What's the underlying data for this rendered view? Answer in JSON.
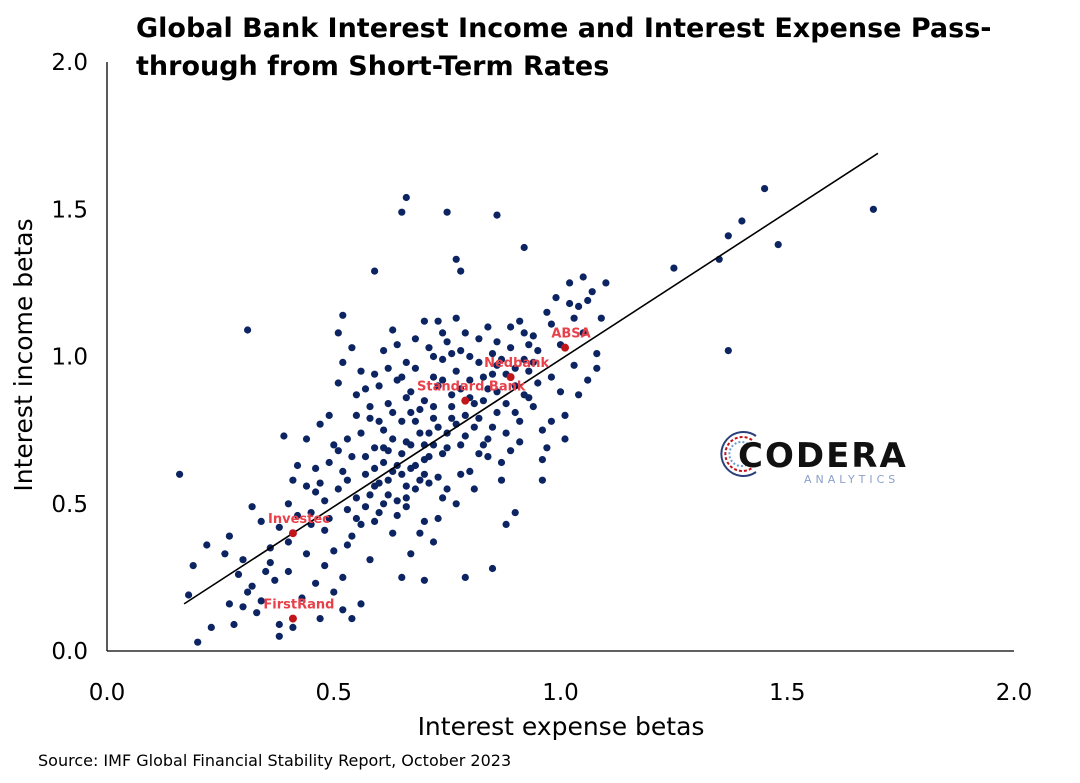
{
  "chart_data": {
    "type": "scatter",
    "title": "Global Bank Interest Income and Interest Expense Pass-through from Short-Term Rates",
    "xlabel": "Interest expense betas",
    "ylabel": "Interest income betas",
    "xlim": [
      0,
      2
    ],
    "ylim": [
      0,
      2
    ],
    "x_ticks": [
      "0.0",
      "0.5",
      "1.0",
      "1.5",
      "2.0"
    ],
    "y_ticks": [
      "0.0",
      "0.5",
      "1.0",
      "1.5",
      "2.0"
    ],
    "grid": false,
    "colors": {
      "points": "#0c2461",
      "highlight": "#c0151b",
      "highlight_label": "#e8414a",
      "trend": "#000000"
    },
    "trend_line": {
      "x": [
        0.17,
        1.7
      ],
      "y": [
        0.16,
        1.69
      ]
    },
    "highlighted": [
      {
        "name": "ABSA",
        "x": 1.01,
        "y": 1.03
      },
      {
        "name": "Nedbank",
        "x": 0.89,
        "y": 0.93
      },
      {
        "name": "Standard Bank",
        "x": 0.79,
        "y": 0.85
      },
      {
        "name": "Investec",
        "x": 0.41,
        "y": 0.4
      },
      {
        "name": "FirstRand",
        "x": 0.41,
        "y": 0.11
      }
    ],
    "series": [
      {
        "values": [
          [
            0.66,
            1.54
          ],
          [
            0.65,
            1.49
          ],
          [
            0.75,
            1.49
          ],
          [
            0.86,
            1.48
          ],
          [
            0.92,
            1.37
          ],
          [
            0.77,
            1.33
          ],
          [
            0.78,
            1.29
          ],
          [
            0.59,
            1.29
          ],
          [
            1.25,
            1.3
          ],
          [
            1.35,
            1.33
          ],
          [
            1.37,
            1.41
          ],
          [
            1.4,
            1.46
          ],
          [
            1.45,
            1.57
          ],
          [
            1.48,
            1.38
          ],
          [
            1.69,
            1.5
          ],
          [
            1.37,
            1.02
          ],
          [
            0.31,
            1.09
          ],
          [
            0.16,
            0.6
          ],
          [
            0.18,
            0.19
          ],
          [
            0.19,
            0.29
          ],
          [
            0.2,
            0.03
          ],
          [
            0.23,
            0.08
          ],
          [
            0.22,
            0.36
          ],
          [
            0.26,
            0.33
          ],
          [
            0.27,
            0.39
          ],
          [
            0.27,
            0.16
          ],
          [
            0.29,
            0.26
          ],
          [
            0.3,
            0.31
          ],
          [
            0.31,
            0.2
          ],
          [
            0.32,
            0.49
          ],
          [
            0.33,
            0.13
          ],
          [
            0.34,
            0.17
          ],
          [
            0.36,
            0.35
          ],
          [
            0.37,
            0.24
          ],
          [
            0.38,
            0.05
          ],
          [
            0.38,
            0.09
          ],
          [
            0.4,
            0.27
          ],
          [
            0.4,
            0.5
          ],
          [
            0.41,
            0.58
          ],
          [
            0.42,
            0.63
          ],
          [
            0.44,
            0.33
          ],
          [
            0.45,
            0.47
          ],
          [
            0.46,
            0.54
          ],
          [
            0.47,
            0.57
          ],
          [
            0.48,
            0.41
          ],
          [
            0.48,
            0.29
          ],
          [
            0.49,
            0.64
          ],
          [
            0.5,
            0.7
          ],
          [
            0.51,
            0.55
          ],
          [
            0.52,
            0.61
          ],
          [
            0.53,
            0.48
          ],
          [
            0.53,
            0.36
          ],
          [
            0.54,
            0.11
          ],
          [
            0.52,
            0.14
          ],
          [
            0.5,
            0.2
          ],
          [
            0.44,
            0.72
          ],
          [
            0.39,
            0.73
          ],
          [
            0.41,
            0.08
          ],
          [
            0.46,
            0.23
          ],
          [
            0.45,
            0.43
          ],
          [
            0.47,
            0.77
          ],
          [
            0.49,
            0.8
          ],
          [
            0.51,
            0.91
          ],
          [
            0.52,
            0.98
          ],
          [
            0.51,
            1.08
          ],
          [
            0.52,
            1.14
          ],
          [
            0.54,
            1.03
          ],
          [
            0.55,
            0.87
          ],
          [
            0.56,
            0.74
          ],
          [
            0.57,
            0.66
          ],
          [
            0.58,
            0.79
          ],
          [
            0.59,
            0.62
          ],
          [
            0.6,
            0.57
          ],
          [
            0.61,
            0.69
          ],
          [
            0.62,
            0.53
          ],
          [
            0.63,
            0.81
          ],
          [
            0.64,
            0.46
          ],
          [
            0.65,
            0.6
          ],
          [
            0.66,
            0.71
          ],
          [
            0.67,
            0.88
          ],
          [
            0.68,
            0.96
          ],
          [
            0.69,
            0.58
          ],
          [
            0.7,
            0.65
          ],
          [
            0.71,
            0.74
          ],
          [
            0.72,
            0.83
          ],
          [
            0.73,
            0.9
          ],
          [
            0.74,
            0.67
          ],
          [
            0.75,
            0.55
          ],
          [
            0.76,
            0.79
          ],
          [
            0.77,
            0.95
          ],
          [
            0.78,
            1.02
          ],
          [
            0.79,
            0.73
          ],
          [
            0.8,
            0.61
          ],
          [
            0.81,
            0.84
          ],
          [
            0.82,
            0.98
          ],
          [
            0.83,
            0.7
          ],
          [
            0.84,
            0.89
          ],
          [
            0.85,
            0.76
          ],
          [
            0.86,
            1.05
          ],
          [
            0.87,
            0.64
          ],
          [
            0.88,
            0.94
          ],
          [
            0.89,
            1.1
          ],
          [
            0.9,
            0.81
          ],
          [
            0.91,
            0.71
          ],
          [
            0.92,
            0.99
          ],
          [
            0.93,
            0.86
          ],
          [
            0.94,
            1.07
          ],
          [
            0.95,
            0.91
          ],
          [
            0.96,
            0.65
          ],
          [
            0.97,
            1.15
          ],
          [
            0.98,
            0.78
          ],
          [
            0.99,
            1.2
          ],
          [
            1.0,
            0.88
          ],
          [
            1.01,
            0.72
          ],
          [
            1.02,
            1.25
          ],
          [
            1.03,
            0.97
          ],
          [
            1.04,
            1.17
          ],
          [
            1.05,
            1.08
          ],
          [
            1.06,
            0.92
          ],
          [
            1.07,
            1.22
          ],
          [
            1.08,
            1.01
          ],
          [
            1.09,
            1.13
          ],
          [
            1.1,
            1.25
          ],
          [
            1.05,
            1.27
          ],
          [
            1.02,
            1.18
          ],
          [
            0.98,
            1.11
          ],
          [
            0.96,
            0.58
          ],
          [
            0.9,
            0.47
          ],
          [
            0.88,
            0.43
          ],
          [
            0.85,
            0.28
          ],
          [
            0.79,
            0.25
          ],
          [
            0.72,
            0.37
          ],
          [
            0.7,
            0.24
          ],
          [
            0.67,
            0.33
          ],
          [
            0.65,
            0.25
          ],
          [
            0.63,
            0.4
          ],
          [
            0.6,
            0.47
          ],
          [
            0.58,
            0.31
          ],
          [
            0.56,
            0.43
          ],
          [
            0.55,
            0.52
          ],
          [
            0.57,
            0.6
          ],
          [
            0.59,
            0.69
          ],
          [
            0.61,
            0.75
          ],
          [
            0.62,
            0.84
          ],
          [
            0.64,
            0.92
          ],
          [
            0.66,
            0.98
          ],
          [
            0.68,
            1.06
          ],
          [
            0.7,
            1.12
          ],
          [
            0.72,
            1.0
          ],
          [
            0.74,
            1.08
          ],
          [
            0.76,
            1.01
          ],
          [
            0.74,
            0.92
          ],
          [
            0.72,
            0.79
          ],
          [
            0.7,
            0.7
          ],
          [
            0.68,
            0.63
          ],
          [
            0.66,
            0.56
          ],
          [
            0.64,
            0.51
          ],
          [
            0.62,
            0.68
          ],
          [
            0.6,
            0.78
          ],
          [
            0.58,
            0.83
          ],
          [
            0.56,
            0.95
          ],
          [
            0.54,
            0.66
          ],
          [
            0.53,
            0.72
          ],
          [
            0.55,
            0.8
          ],
          [
            0.57,
            0.89
          ],
          [
            0.59,
            0.94
          ],
          [
            0.61,
            1.02
          ],
          [
            0.63,
            1.09
          ],
          [
            0.65,
            0.93
          ],
          [
            0.67,
            0.81
          ],
          [
            0.69,
            0.74
          ],
          [
            0.71,
            0.66
          ],
          [
            0.73,
            0.59
          ],
          [
            0.75,
            0.69
          ],
          [
            0.77,
            0.77
          ],
          [
            0.79,
            0.8
          ],
          [
            0.81,
            0.76
          ],
          [
            0.83,
            0.85
          ],
          [
            0.85,
            0.94
          ],
          [
            0.87,
            0.99
          ],
          [
            0.89,
            1.03
          ],
          [
            0.91,
            1.12
          ],
          [
            0.93,
            1.04
          ],
          [
            0.86,
            0.81
          ],
          [
            0.82,
            0.67
          ],
          [
            0.78,
            0.6
          ],
          [
            0.74,
            0.52
          ],
          [
            0.7,
            0.44
          ],
          [
            0.66,
            0.49
          ],
          [
            0.62,
            0.58
          ],
          [
            0.58,
            0.53
          ],
          [
            0.54,
            0.39
          ],
          [
            0.5,
            0.34
          ],
          [
            0.48,
            0.51
          ],
          [
            0.46,
            0.62
          ],
          [
            0.44,
            0.56
          ],
          [
            0.42,
            0.46
          ],
          [
            0.4,
            0.37
          ],
          [
            0.38,
            0.42
          ],
          [
            0.36,
            0.3
          ],
          [
            0.34,
            0.44
          ],
          [
            0.32,
            0.22
          ],
          [
            0.3,
            0.15
          ],
          [
            0.28,
            0.09
          ],
          [
            0.35,
            0.27
          ],
          [
            0.43,
            0.18
          ],
          [
            0.47,
            0.11
          ],
          [
            0.52,
            0.25
          ],
          [
            0.56,
            0.16
          ],
          [
            0.6,
            0.9
          ],
          [
            0.62,
            0.96
          ],
          [
            0.64,
            1.04
          ],
          [
            0.66,
            0.86
          ],
          [
            0.68,
            0.78
          ],
          [
            0.7,
            0.85
          ],
          [
            0.72,
            0.93
          ],
          [
            0.74,
            0.99
          ],
          [
            0.76,
            0.87
          ],
          [
            0.78,
            0.7
          ],
          [
            0.8,
            0.92
          ],
          [
            0.82,
            1.06
          ],
          [
            0.84,
            1.1
          ],
          [
            0.86,
            0.97
          ],
          [
            0.88,
            0.74
          ],
          [
            0.9,
            0.9
          ],
          [
            0.92,
            1.08
          ],
          [
            0.94,
            0.83
          ],
          [
            0.96,
            0.75
          ],
          [
            0.98,
            0.93
          ],
          [
            1.0,
            1.04
          ],
          [
            1.03,
            1.13
          ],
          [
            1.06,
            1.19
          ],
          [
            1.08,
            0.96
          ],
          [
            1.04,
            0.87
          ],
          [
            1.01,
            0.8
          ],
          [
            0.97,
            0.69
          ],
          [
            0.95,
            1.02
          ],
          [
            0.93,
            0.95
          ],
          [
            0.91,
            0.78
          ],
          [
            0.89,
            0.68
          ],
          [
            0.87,
            0.58
          ],
          [
            0.84,
            0.66
          ],
          [
            0.81,
            0.55
          ],
          [
            0.77,
            0.5
          ],
          [
            0.73,
            0.45
          ],
          [
            0.69,
            0.4
          ],
          [
            0.67,
            0.7
          ],
          [
            0.65,
            0.78
          ],
          [
            0.63,
            0.72
          ],
          [
            0.61,
            0.64
          ],
          [
            0.59,
            0.56
          ],
          [
            0.57,
            0.49
          ],
          [
            0.55,
            0.45
          ],
          [
            0.53,
            0.58
          ],
          [
            0.51,
            0.68
          ],
          [
            0.49,
            0.45
          ],
          [
            0.71,
            1.03
          ],
          [
            0.73,
            1.12
          ],
          [
            0.75,
            1.05
          ],
          [
            0.77,
            1.13
          ],
          [
            0.79,
            1.08
          ],
          [
            0.8,
            1.0
          ],
          [
            0.83,
            0.93
          ],
          [
            0.85,
            1.01
          ],
          [
            0.75,
            0.74
          ],
          [
            0.69,
            0.82
          ],
          [
            0.67,
            0.62
          ],
          [
            0.71,
            0.57
          ],
          [
            0.73,
            0.76
          ],
          [
            0.65,
            0.67
          ],
          [
            0.63,
            0.61
          ],
          [
            0.61,
            0.5
          ],
          [
            0.59,
            0.44
          ],
          [
            0.64,
            0.63
          ],
          [
            0.66,
            0.52
          ],
          [
            0.68,
            0.55
          ],
          [
            0.7,
            0.6
          ],
          [
            0.72,
            0.7
          ],
          [
            0.76,
            0.83
          ],
          [
            0.78,
            0.89
          ],
          [
            0.8,
            0.86
          ],
          [
            0.82,
            0.79
          ],
          [
            0.84,
            0.72
          ],
          [
            0.86,
            0.88
          ],
          [
            0.88,
            0.84
          ],
          [
            0.9,
            0.96
          ],
          [
            0.92,
            0.87
          ],
          [
            0.94,
            0.98
          ]
        ]
      }
    ]
  },
  "source": "Source: IMF Global Financial Stability Report, October 2023",
  "logo": {
    "word": "CODERA",
    "sub": "ANALYTICS"
  }
}
